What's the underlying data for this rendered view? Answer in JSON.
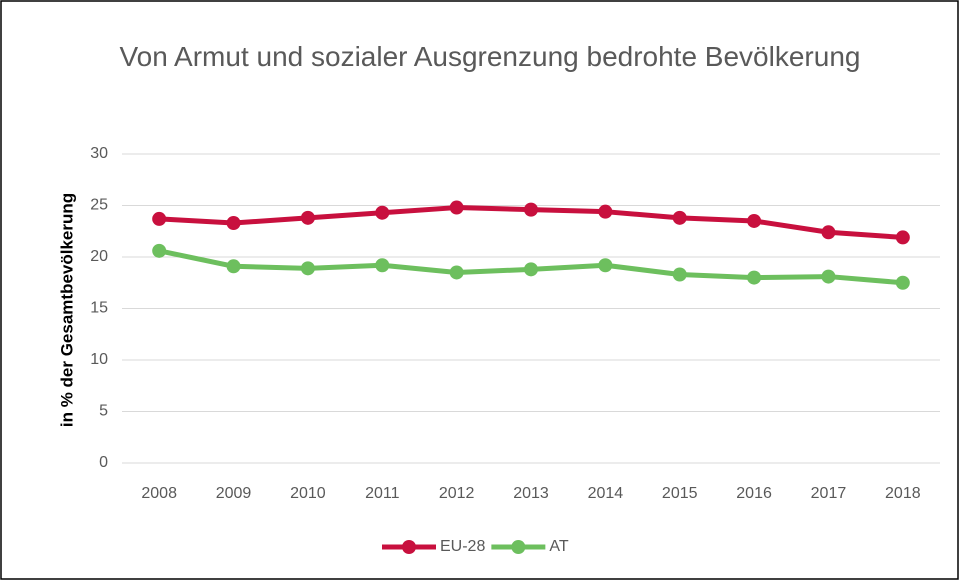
{
  "chart_data": {
    "type": "line",
    "title": "Von Armut und sozialer Ausgrenzung bedrohte Bevölkerung",
    "y_label": "in % der Gesamtbevölkerung",
    "categories": [
      "2008",
      "2009",
      "2010",
      "2011",
      "2012",
      "2013",
      "2014",
      "2015",
      "2016",
      "2017",
      "2018"
    ],
    "series": [
      {
        "name": "EU-28",
        "color": "#c8103e",
        "values": [
          23.7,
          23.3,
          23.8,
          24.3,
          24.8,
          24.6,
          24.4,
          23.8,
          23.5,
          22.4,
          21.9
        ]
      },
      {
        "name": "AT",
        "color": "#6dbf5e",
        "values": [
          20.6,
          19.1,
          18.9,
          19.2,
          18.5,
          18.8,
          19.2,
          18.3,
          18.0,
          18.1,
          17.5
        ]
      }
    ],
    "ylim": [
      0,
      30
    ],
    "yticks": [
      0,
      5,
      10,
      15,
      20,
      25,
      30
    ],
    "grid": true,
    "legend": "bottom"
  }
}
